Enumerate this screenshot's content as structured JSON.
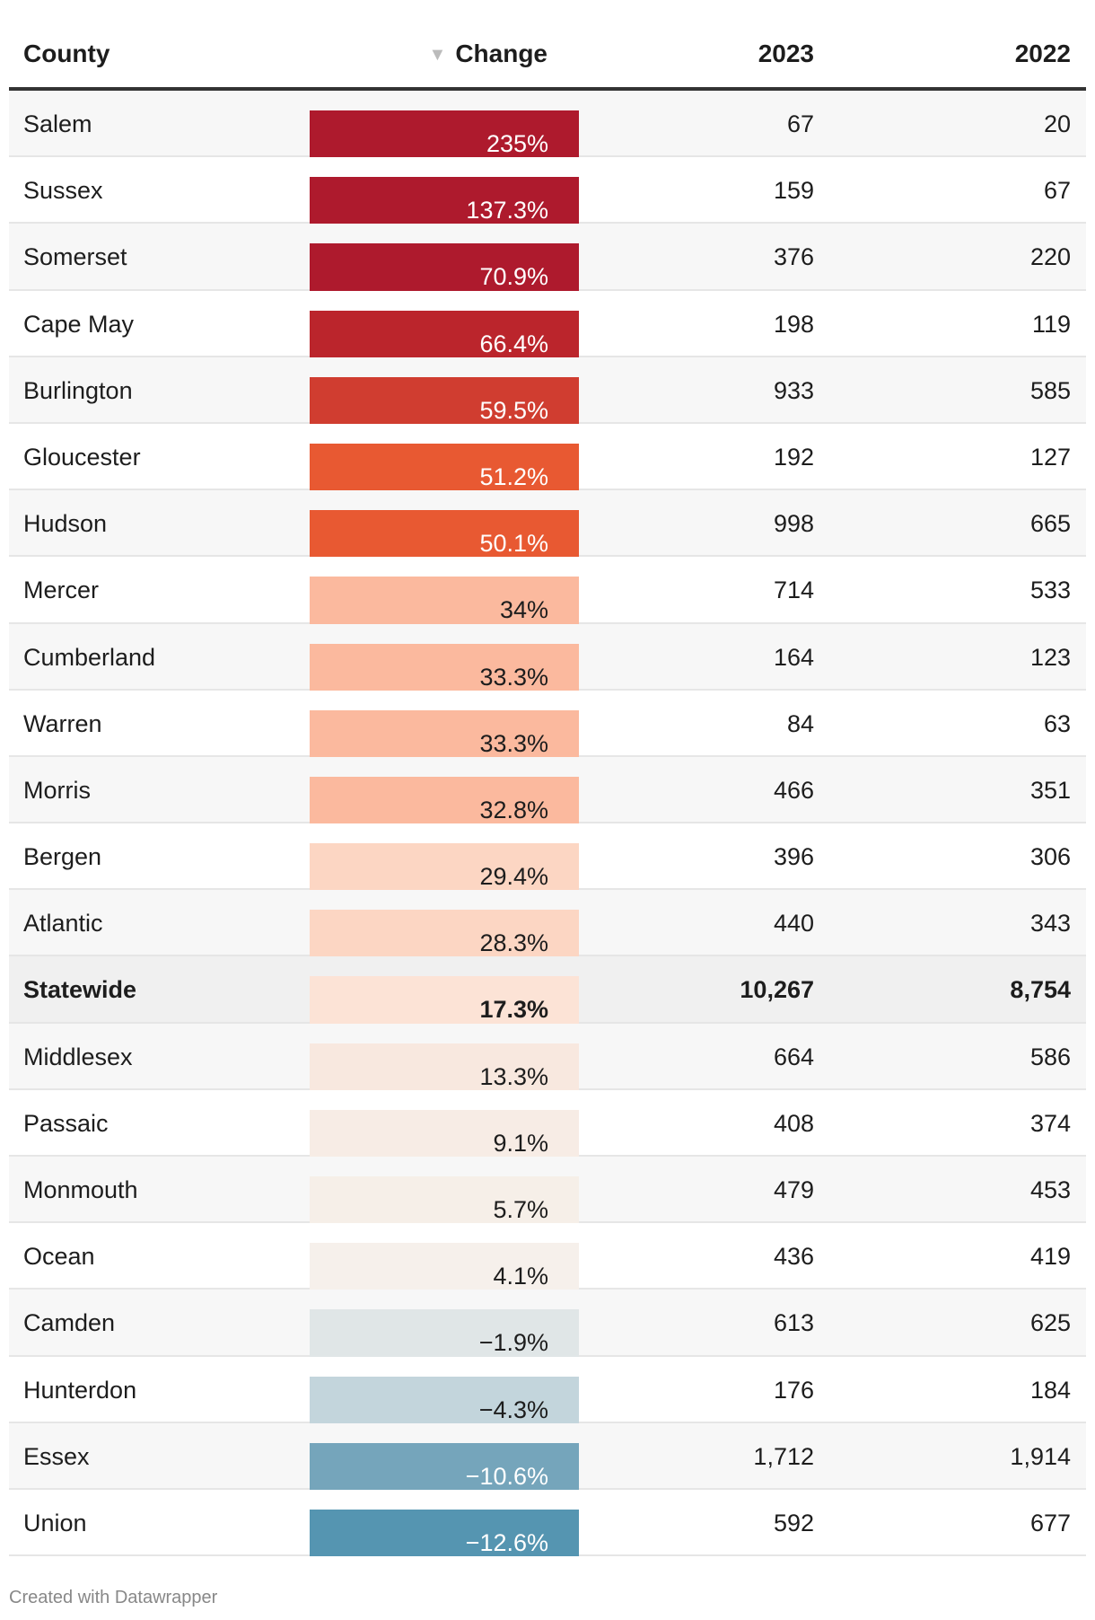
{
  "header": {
    "county": "County",
    "change": "Change",
    "y2023": "2023",
    "y2022": "2022",
    "sort_icon": "triangle-down"
  },
  "rows": [
    {
      "county": "Salem",
      "change": "235%",
      "y2023": "67",
      "y2022": "20",
      "color": "#ae1a2d",
      "light": true
    },
    {
      "county": "Sussex",
      "change": "137.3%",
      "y2023": "159",
      "y2022": "67",
      "color": "#ae1a2d",
      "light": true
    },
    {
      "county": "Somerset",
      "change": "70.9%",
      "y2023": "376",
      "y2022": "220",
      "color": "#ae1a2d",
      "light": true
    },
    {
      "county": "Cape May",
      "change": "66.4%",
      "y2023": "198",
      "y2022": "119",
      "color": "#bb252c",
      "light": true
    },
    {
      "county": "Burlington",
      "change": "59.5%",
      "y2023": "933",
      "y2022": "585",
      "color": "#d03d30",
      "light": true
    },
    {
      "county": "Gloucester",
      "change": "51.2%",
      "y2023": "192",
      "y2022": "127",
      "color": "#e85932",
      "light": true
    },
    {
      "county": "Hudson",
      "change": "50.1%",
      "y2023": "998",
      "y2022": "665",
      "color": "#e85932",
      "light": true
    },
    {
      "county": "Mercer",
      "change": "34%",
      "y2023": "714",
      "y2022": "533",
      "color": "#fbb99e",
      "light": false
    },
    {
      "county": "Cumberland",
      "change": "33.3%",
      "y2023": "164",
      "y2022": "123",
      "color": "#fbb99e",
      "light": false
    },
    {
      "county": "Warren",
      "change": "33.3%",
      "y2023": "84",
      "y2022": "63",
      "color": "#fbb99e",
      "light": false
    },
    {
      "county": "Morris",
      "change": "32.8%",
      "y2023": "466",
      "y2022": "351",
      "color": "#fbb99e",
      "light": false
    },
    {
      "county": "Bergen",
      "change": "29.4%",
      "y2023": "396",
      "y2022": "306",
      "color": "#fcd6c3",
      "light": false
    },
    {
      "county": "Atlantic",
      "change": "28.3%",
      "y2023": "440",
      "y2022": "343",
      "color": "#fcd6c3",
      "light": false
    },
    {
      "county": "Statewide",
      "change": "17.3%",
      "y2023": "10,267",
      "y2022": "8,754",
      "color": "#fce3d6",
      "light": false,
      "bold": true
    },
    {
      "county": "Middlesex",
      "change": "13.3%",
      "y2023": "664",
      "y2022": "586",
      "color": "#f8e8df",
      "light": false
    },
    {
      "county": "Passaic",
      "change": "9.1%",
      "y2023": "408",
      "y2022": "374",
      "color": "#f7ece5",
      "light": false
    },
    {
      "county": "Monmouth",
      "change": "5.7%",
      "y2023": "479",
      "y2022": "453",
      "color": "#f6efe8",
      "light": false
    },
    {
      "county": "Ocean",
      "change": "4.1%",
      "y2023": "436",
      "y2022": "419",
      "color": "#f6f0eb",
      "light": false
    },
    {
      "county": "Camden",
      "change": "−1.9%",
      "y2023": "613",
      "y2022": "625",
      "color": "#e0e6e7",
      "light": false
    },
    {
      "county": "Hunterdon",
      "change": "−4.3%",
      "y2023": "176",
      "y2022": "184",
      "color": "#c3d5dc",
      "light": false
    },
    {
      "county": "Essex",
      "change": "−10.6%",
      "y2023": "1,712",
      "y2022": "1,914",
      "color": "#75a5bb",
      "light": true
    },
    {
      "county": "Union",
      "change": "−12.6%",
      "y2023": "592",
      "y2022": "677",
      "color": "#5595b1",
      "light": true
    }
  ],
  "footer": "Created with Datawrapper"
}
